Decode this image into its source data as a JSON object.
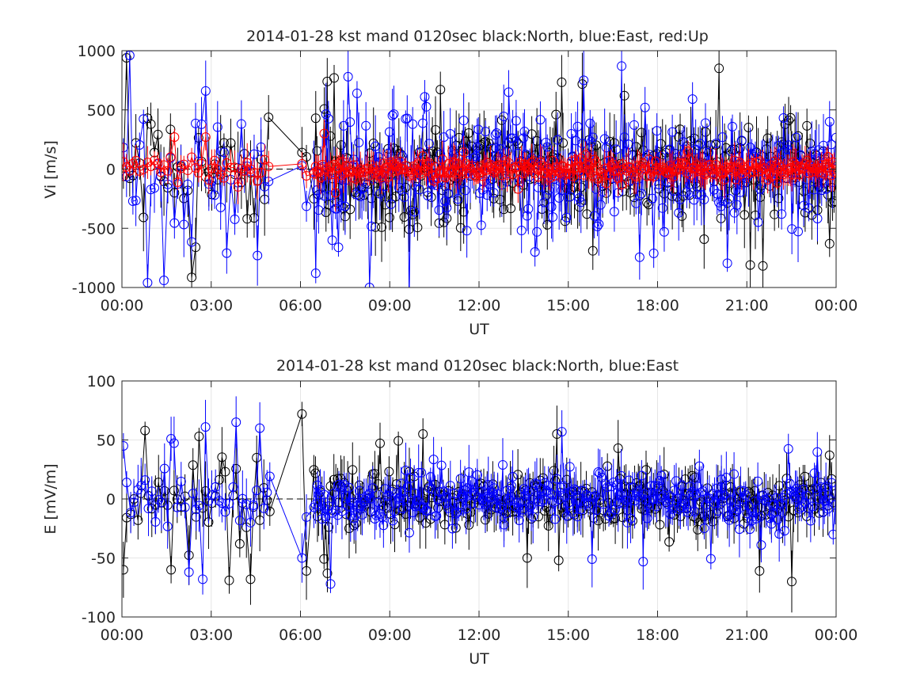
{
  "chart_data": [
    {
      "type": "scatter",
      "title": "2014-01-28 kst mand 0120sec black:North, blue:East, red:Up",
      "xlabel": "UT",
      "ylabel": "Vi [m/s]",
      "xlim": [
        0,
        24
      ],
      "ylim": [
        -1000,
        1000
      ],
      "x_ticks": [
        0,
        3,
        6,
        9,
        12,
        15,
        18,
        21,
        24
      ],
      "x_tick_labels": [
        "00:00",
        "03:00",
        "06:00",
        "09:00",
        "12:00",
        "15:00",
        "18:00",
        "21:00",
        "00:00"
      ],
      "y_ticks": [
        -1000,
        -500,
        0,
        500,
        1000
      ],
      "y_tick_labels": [
        "-1000",
        "-500",
        "0",
        "500",
        "1000"
      ],
      "grid": true,
      "seed": 7,
      "series": [
        {
          "name": "North",
          "color": "#000000",
          "amp": 340,
          "err": 260,
          "key": [
            [
              0.1,
              -60
            ],
            [
              0.2,
              940
            ],
            [
              0.8,
              430
            ],
            [
              1.0,
              380
            ],
            [
              1.7,
              -200
            ],
            [
              2.5,
              -660
            ],
            [
              3.3,
              150
            ],
            [
              3.6,
              220
            ],
            [
              4.2,
              -420
            ],
            [
              6.1,
              140
            ],
            [
              6.5,
              430
            ],
            [
              6.9,
              740
            ],
            [
              7.1,
              770
            ],
            [
              7.5,
              -400
            ],
            [
              8.5,
              -490
            ],
            [
              10.8,
              -450
            ],
            [
              14.9,
              -440
            ],
            [
              15.8,
              -690
            ],
            [
              16.9,
              620
            ],
            [
              21.1,
              -810
            ],
            [
              23.8,
              -630
            ]
          ]
        },
        {
          "name": "East",
          "color": "#0000ff",
          "amp": 380,
          "err": 230,
          "key": [
            [
              0.3,
              960
            ],
            [
              0.9,
              -960
            ],
            [
              1.4,
              -940
            ],
            [
              2.8,
              660
            ],
            [
              3.5,
              -710
            ],
            [
              4.6,
              -730
            ],
            [
              6.5,
              -880
            ],
            [
              7.6,
              780
            ],
            [
              7.9,
              640
            ],
            [
              8.3,
              -1000
            ],
            [
              10.2,
              610
            ],
            [
              11.6,
              -520
            ],
            [
              13.0,
              650
            ],
            [
              13.9,
              -700
            ],
            [
              15.5,
              750
            ],
            [
              16.8,
              870
            ],
            [
              17.6,
              520
            ],
            [
              18.2,
              -530
            ],
            [
              23.8,
              400
            ]
          ]
        },
        {
          "name": "Up",
          "color": "#ff0000",
          "amp": 70,
          "err": 140,
          "key": [
            [
              0.1,
              60
            ],
            [
              1.2,
              50
            ],
            [
              1.8,
              270
            ],
            [
              2.8,
              270
            ],
            [
              3.9,
              -150
            ],
            [
              6.8,
              300
            ],
            [
              7.2,
              -200
            ],
            [
              10.5,
              -100
            ],
            [
              15.6,
              120
            ],
            [
              16.3,
              -120
            ],
            [
              23.9,
              60
            ]
          ]
        }
      ]
    },
    {
      "type": "scatter",
      "title": "2014-01-28 kst mand 0120sec black:North, blue:East",
      "xlabel": "UT",
      "ylabel": "E [mV/m]",
      "xlim": [
        0,
        24
      ],
      "ylim": [
        -100,
        100
      ],
      "x_ticks": [
        0,
        3,
        6,
        9,
        12,
        15,
        18,
        21,
        24
      ],
      "x_tick_labels": [
        "00:00",
        "03:00",
        "06:00",
        "09:00",
        "12:00",
        "15:00",
        "18:00",
        "21:00",
        "00:00"
      ],
      "y_ticks": [
        -100,
        -50,
        0,
        50,
        100
      ],
      "y_tick_labels": [
        "-100",
        "-50",
        "0",
        "50",
        "100"
      ],
      "grid": true,
      "seed": 21,
      "series": [
        {
          "name": "North",
          "color": "#000000",
          "amp": 20,
          "err": 22,
          "key": [
            [
              0.0,
              -60
            ],
            [
              0.8,
              58
            ],
            [
              1.7,
              -60
            ],
            [
              2.6,
              53
            ],
            [
              3.6,
              -69
            ],
            [
              3.9,
              -38
            ],
            [
              4.3,
              -68
            ],
            [
              4.5,
              35
            ],
            [
              6.1,
              72
            ],
            [
              6.2,
              -61
            ],
            [
              6.9,
              -63
            ],
            [
              10.1,
              55
            ],
            [
              13.6,
              -50
            ],
            [
              14.6,
              55
            ],
            [
              14.7,
              -52
            ],
            [
              16.7,
              43
            ],
            [
              21.4,
              -61
            ],
            [
              22.5,
              -70
            ],
            [
              23.8,
              37
            ]
          ]
        },
        {
          "name": "East",
          "color": "#0000ff",
          "amp": 18,
          "err": 20,
          "key": [
            [
              0.0,
              45
            ],
            [
              1.7,
              51
            ],
            [
              2.3,
              -62
            ],
            [
              2.7,
              -68
            ],
            [
              2.8,
              61
            ],
            [
              3.8,
              65
            ],
            [
              4.3,
              -20
            ],
            [
              4.6,
              60
            ],
            [
              6.1,
              -50
            ],
            [
              7.0,
              -72
            ],
            [
              14.8,
              57
            ],
            [
              15.8,
              -51
            ],
            [
              21.5,
              -39
            ],
            [
              23.9,
              -30
            ]
          ]
        }
      ]
    }
  ]
}
